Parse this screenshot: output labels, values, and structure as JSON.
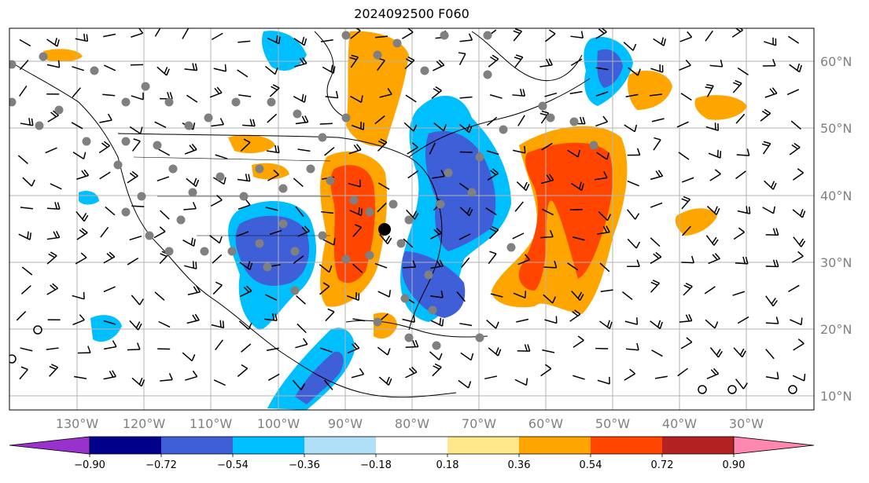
{
  "title": "2024092500 F060",
  "lon_labels": [
    "130°W",
    "120°W",
    "110°W",
    "100°W",
    "90°W",
    "80°W",
    "70°W",
    "60°W",
    "50°W",
    "40°W",
    "30°W"
  ],
  "lat_labels": [
    "10°N",
    "20°N",
    "30°N",
    "40°N",
    "50°N",
    "60°N"
  ],
  "colorbar": {
    "colors": [
      "#9932cc",
      "#00008b",
      "#3f5fd8",
      "#00bfff",
      "#b0e0f8",
      "#ffffff",
      "#ffe88c",
      "#ffa500",
      "#ff4500",
      "#b22222",
      "#ff88b0"
    ],
    "labels": [
      "−0.90",
      "−0.72",
      "−0.54",
      "−0.36",
      "−0.18",
      "0.18",
      "0.36",
      "0.54",
      "0.72",
      "0.90"
    ]
  },
  "map_colors": {
    "grid": "#b3b3b3",
    "land_lines": "#000000",
    "station_dot": "#808080",
    "center_marker": "#000000"
  }
}
